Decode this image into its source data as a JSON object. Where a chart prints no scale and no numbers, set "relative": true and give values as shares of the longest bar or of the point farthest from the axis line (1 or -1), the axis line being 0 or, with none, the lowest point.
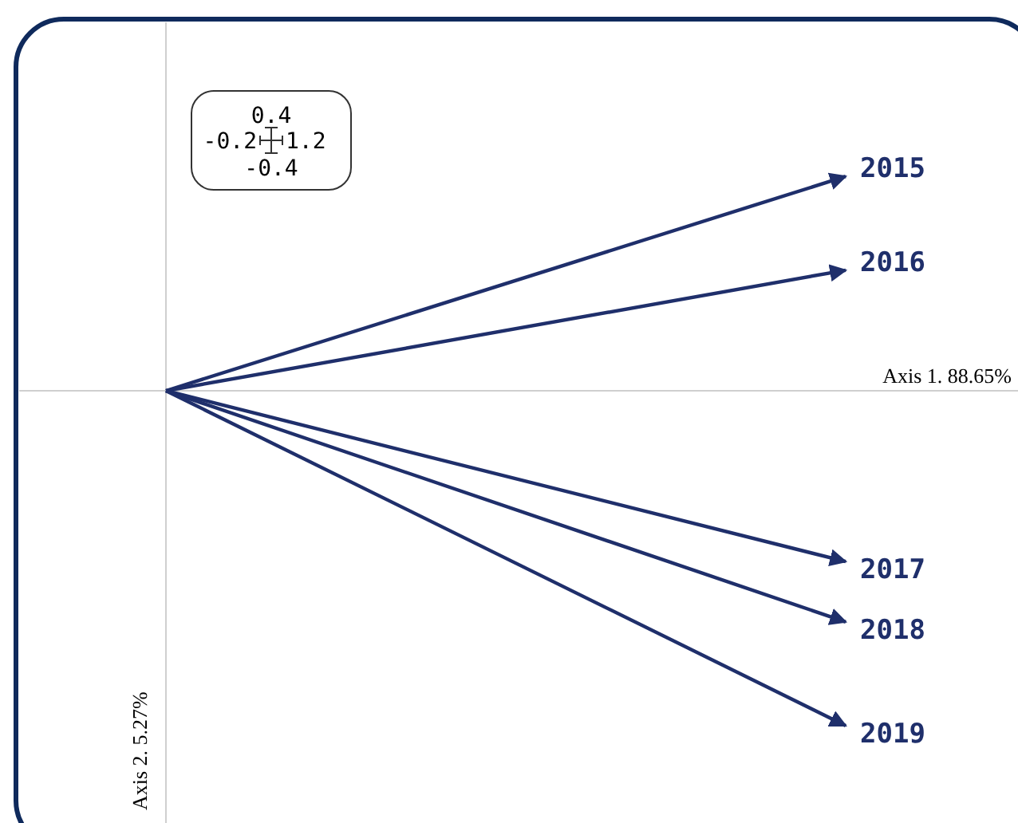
{
  "chart_data": {
    "type": "line",
    "relative": true,
    "categories": [
      null,
      null
    ],
    "annotations": [
      "Axis 1. 88.65%",
      "Axis 2. 5.27%",
      "0.4",
      "-0.2",
      "1.2",
      "-0.4"
    ],
    "marker": "none",
    "line_style": "solid",
    "series": [
      {
        "name": "2015",
        "color": "#1f2f6b",
        "values": [
          0,
          0.64
        ]
      },
      {
        "name": "2016",
        "color": "#1f2f6b",
        "values": [
          0,
          0.36
        ]
      },
      {
        "name": "2017",
        "color": "#1f2f6b",
        "values": [
          0,
          -0.51
        ]
      },
      {
        "name": "2018",
        "color": "#1f2f6b",
        "values": [
          0,
          -0.69
        ]
      },
      {
        "name": "2019",
        "color": "#1f2f6b",
        "values": [
          0,
          -1
        ]
      }
    ]
  }
}
